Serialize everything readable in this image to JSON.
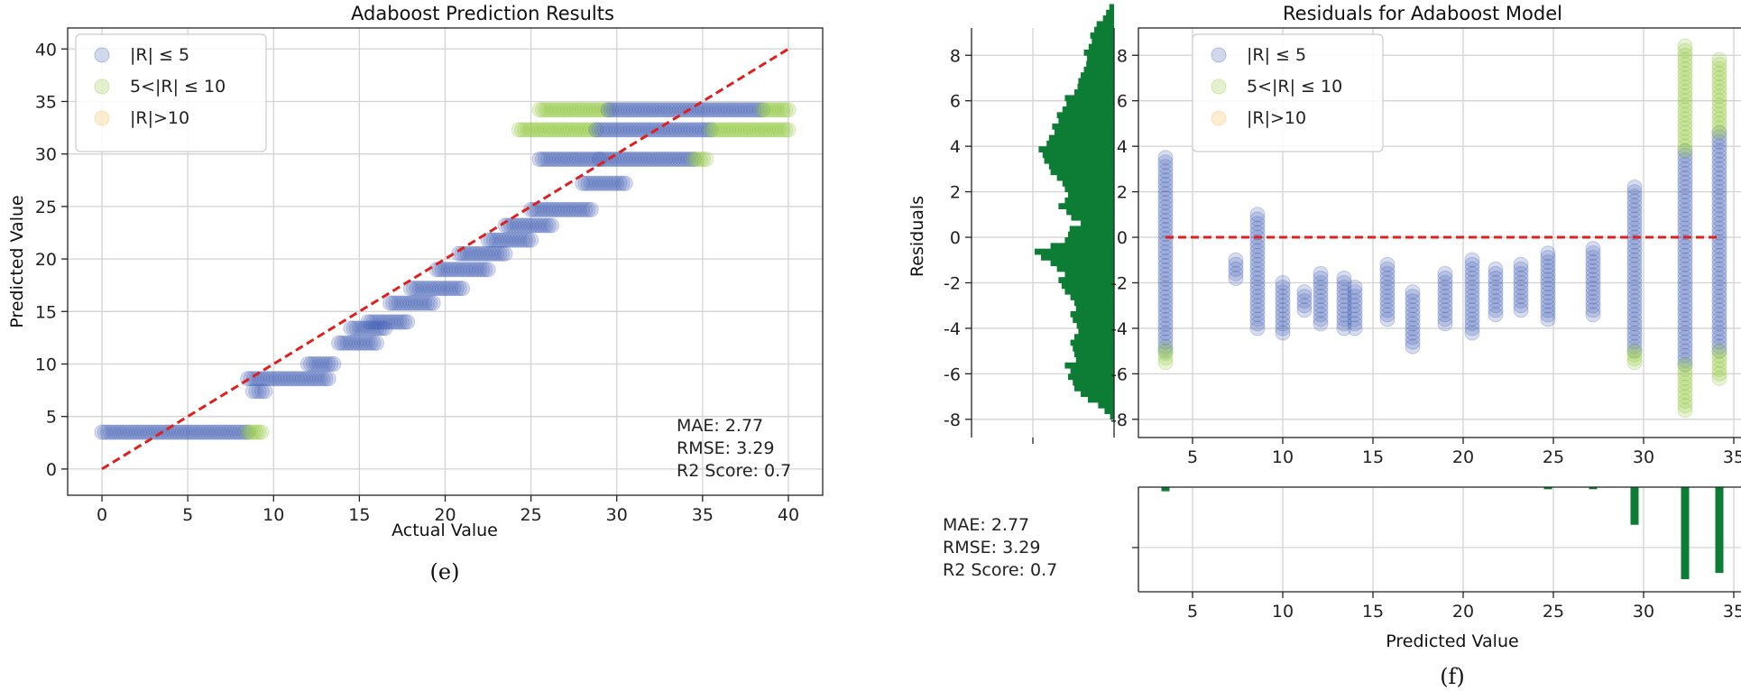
{
  "colors": {
    "low": "#4a66b8",
    "mid": "#92c83e",
    "high": "#f5b94a",
    "ref": "#dd2020",
    "hist": "#0d7d35",
    "grid": "#d3d3d3"
  },
  "legend": {
    "items": [
      {
        "label": "|R| ≤ 5",
        "color_key": "low"
      },
      {
        "label": "5<|R| ≤ 10",
        "color_key": "mid"
      },
      {
        "label": "|R|>10",
        "color_key": "high"
      }
    ]
  },
  "captions": {
    "left": "(e)",
    "right": "(f)"
  },
  "chart_data": [
    {
      "id": "prediction",
      "type": "scatter",
      "title": "Adaboost Prediction Results",
      "xlabel": "Actual Value",
      "ylabel": "Predicted Value",
      "xlim": [
        -2,
        42
      ],
      "ylim": [
        -2.5,
        42
      ],
      "xticks": [
        0,
        5,
        10,
        15,
        20,
        25,
        30,
        35,
        40
      ],
      "yticks": [
        0,
        5,
        10,
        15,
        20,
        25,
        30,
        35,
        40
      ],
      "reference_line": {
        "x": [
          0,
          40
        ],
        "y": [
          0,
          40
        ]
      },
      "clusters": [
        {
          "pred": 3.5,
          "x_from": 0,
          "x_to": 8.5,
          "band": "low"
        },
        {
          "pred": 3.5,
          "x_from": 8.5,
          "x_to": 9.3,
          "band": "mid"
        },
        {
          "pred": 8.6,
          "x_from": 8.5,
          "x_to": 13.2,
          "band": "low"
        },
        {
          "pred": 7.4,
          "x_from": 8.8,
          "x_to": 9.5,
          "band": "low"
        },
        {
          "pred": 10,
          "x_from": 12,
          "x_to": 13.5,
          "band": "low"
        },
        {
          "pred": 12,
          "x_from": 13.8,
          "x_to": 16,
          "band": "low"
        },
        {
          "pred": 13.4,
          "x_from": 14.5,
          "x_to": 16.5,
          "band": "low"
        },
        {
          "pred": 14,
          "x_from": 15.5,
          "x_to": 17.8,
          "band": "low"
        },
        {
          "pred": 15.8,
          "x_from": 16.8,
          "x_to": 19.3,
          "band": "low"
        },
        {
          "pred": 17.2,
          "x_from": 18,
          "x_to": 21,
          "band": "low"
        },
        {
          "pred": 19,
          "x_from": 19.5,
          "x_to": 22.5,
          "band": "low"
        },
        {
          "pred": 20.5,
          "x_from": 20.8,
          "x_to": 23.5,
          "band": "low"
        },
        {
          "pred": 21.8,
          "x_from": 22.5,
          "x_to": 25,
          "band": "low"
        },
        {
          "pred": 23.2,
          "x_from": 23.5,
          "x_to": 26.2,
          "band": "low"
        },
        {
          "pred": 24.7,
          "x_from": 25,
          "x_to": 28.5,
          "band": "low"
        },
        {
          "pred": 27.2,
          "x_from": 28,
          "x_to": 30.5,
          "band": "low"
        },
        {
          "pred": 29.5,
          "x_from": 25.5,
          "x_to": 29,
          "band": "low"
        },
        {
          "pred": 29.5,
          "x_from": 29,
          "x_to": 34.5,
          "band": "low"
        },
        {
          "pred": 29.5,
          "x_from": 34.5,
          "x_to": 35.2,
          "band": "mid"
        },
        {
          "pred": 32.3,
          "x_from": 24.3,
          "x_to": 28.8,
          "band": "mid"
        },
        {
          "pred": 32.3,
          "x_from": 28.8,
          "x_to": 35.5,
          "band": "low"
        },
        {
          "pred": 32.3,
          "x_from": 35.5,
          "x_to": 40,
          "band": "mid"
        },
        {
          "pred": 34.2,
          "x_from": 25.5,
          "x_to": 29.5,
          "band": "mid"
        },
        {
          "pred": 34.2,
          "x_from": 29.5,
          "x_to": 38.5,
          "band": "low"
        },
        {
          "pred": 34.2,
          "x_from": 38.5,
          "x_to": 40,
          "band": "mid"
        }
      ],
      "metrics": {
        "mae": "MAE: 2.77",
        "rmse": "RMSE: 3.29",
        "r2": "R2 Score: 0.7"
      }
    },
    {
      "id": "residuals",
      "type": "scatter",
      "title": "Residuals for Adaboost Model",
      "xlabel": "Predicted Value",
      "ylabel": "Residuals",
      "xlim": [
        2,
        35.8
      ],
      "ylim": [
        -8.8,
        9.2
      ],
      "xticks": [
        5,
        10,
        15,
        20,
        25,
        30,
        35
      ],
      "yticks": [
        -8,
        -6,
        -4,
        -2,
        0,
        2,
        4,
        6,
        8
      ],
      "zero_line": {
        "x": [
          3.5,
          34.2
        ],
        "y": 0
      },
      "columns": [
        {
          "x": 3.5,
          "low": [
            -5,
            3.5
          ],
          "mid": [
            [
              -5.5,
              -4.9
            ]
          ]
        },
        {
          "x": 7.4,
          "low": [
            -1.8,
            -1
          ],
          "mid": []
        },
        {
          "x": 8.6,
          "low": [
            -4,
            1
          ],
          "mid": []
        },
        {
          "x": 10,
          "low": [
            -4.2,
            -2
          ],
          "mid": []
        },
        {
          "x": 11.2,
          "low": [
            -3.2,
            -2.4
          ],
          "mid": []
        },
        {
          "x": 12.1,
          "low": [
            -3.8,
            -1.6
          ],
          "mid": []
        },
        {
          "x": 13.4,
          "low": [
            -4,
            -1.8
          ],
          "mid": []
        },
        {
          "x": 14,
          "low": [
            -4,
            -2.2
          ],
          "mid": []
        },
        {
          "x": 15.8,
          "low": [
            -3.6,
            -1.2
          ],
          "mid": []
        },
        {
          "x": 17.2,
          "low": [
            -4.8,
            -2.4
          ],
          "mid": []
        },
        {
          "x": 19,
          "low": [
            -3.8,
            -1.6
          ],
          "mid": []
        },
        {
          "x": 20.5,
          "low": [
            -4.2,
            -1
          ],
          "mid": []
        },
        {
          "x": 21.8,
          "low": [
            -3.4,
            -1.4
          ],
          "mid": []
        },
        {
          "x": 23.2,
          "low": [
            -3.2,
            -1.2
          ],
          "mid": []
        },
        {
          "x": 24.7,
          "low": [
            -3.6,
            -0.7
          ],
          "mid": []
        },
        {
          "x": 27.2,
          "low": [
            -3.4,
            -0.5
          ],
          "mid": []
        },
        {
          "x": 29.5,
          "low": [
            -5,
            2.2
          ],
          "mid": [
            [
              -5.5,
              -5
            ]
          ]
        },
        {
          "x": 32.3,
          "low": [
            -5.6,
            3.8
          ],
          "mid": [
            [
              3.8,
              8.4
            ],
            [
              -7.6,
              -5.6
            ]
          ]
        },
        {
          "x": 34.2,
          "low": [
            -5,
            4.6
          ],
          "mid": [
            [
              4.6,
              7.8
            ],
            [
              -6.2,
              -5
            ]
          ]
        }
      ],
      "marginal_x": {
        "centers": [
          3.5,
          24.7,
          27.2,
          29.5,
          32.3,
          34.2
        ],
        "heights": [
          0.02,
          0.01,
          0.01,
          0.18,
          0.44,
          0.41
        ]
      },
      "marginal_y": {
        "bin_edges_from": -8,
        "bin_width": 0.25,
        "counts": [
          0.05,
          0.12,
          0.2,
          0.33,
          0.42,
          0.5,
          0.52,
          0.58,
          0.55,
          0.62,
          0.48,
          0.5,
          0.52,
          0.55,
          0.5,
          0.45,
          0.47,
          0.52,
          0.55,
          0.48,
          0.5,
          0.55,
          0.62,
          0.66,
          0.7,
          0.62,
          0.72,
          0.8,
          0.92,
          1.0,
          0.8,
          0.62,
          0.58,
          0.56,
          0.42,
          0.54,
          0.6,
          0.7,
          0.62,
          0.58,
          0.62,
          0.65,
          0.72,
          0.8,
          0.82,
          0.88,
          0.9,
          0.95,
          0.85,
          0.82,
          0.75,
          0.78,
          0.7,
          0.72,
          0.65,
          0.6,
          0.62,
          0.5,
          0.46,
          0.45,
          0.42,
          0.38,
          0.35,
          0.34,
          0.38,
          0.32,
          0.28,
          0.3,
          0.25,
          0.22,
          0.14,
          0.1,
          0.06
        ]
      },
      "metrics": {
        "mae": "MAE: 2.77",
        "rmse": "RMSE: 3.29",
        "r2": "R2 Score: 0.7"
      }
    }
  ]
}
